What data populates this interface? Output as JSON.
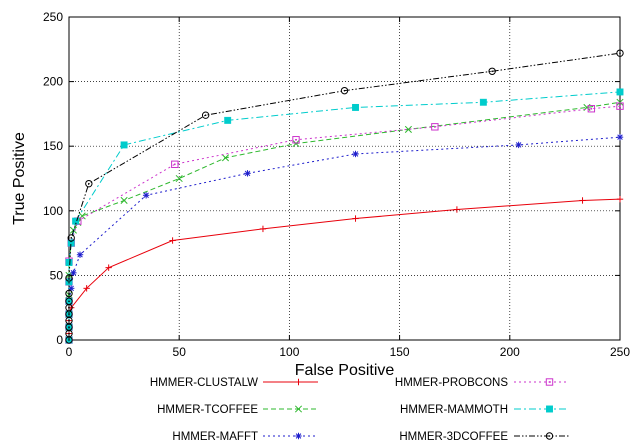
{
  "chart_data": {
    "type": "line",
    "xlabel": "False Positive",
    "ylabel": "True Positive",
    "xlim": [
      0,
      250
    ],
    "ylim": [
      0,
      250
    ],
    "xticks": [
      0,
      50,
      100,
      150,
      200,
      250
    ],
    "yticks": [
      0,
      50,
      100,
      150,
      200,
      250
    ],
    "grid": true,
    "legend_position": "bottom",
    "series": [
      {
        "name": "HMMER-CLUSTALW",
        "color": "#e8000b",
        "dash": "solid",
        "marker": "plus",
        "points": [
          [
            0,
            0
          ],
          [
            0,
            5
          ],
          [
            0,
            10
          ],
          [
            0,
            15
          ],
          [
            0,
            20
          ],
          [
            1,
            25
          ],
          [
            8,
            40
          ],
          [
            18,
            56
          ],
          [
            47,
            77
          ],
          [
            88,
            86
          ],
          [
            130,
            94
          ],
          [
            176,
            101
          ],
          [
            233,
            108
          ],
          [
            250,
            109
          ]
        ]
      },
      {
        "name": "HMMER-TCOFFEE",
        "color": "#2eb82e",
        "dash": "dash",
        "marker": "x",
        "points": [
          [
            0,
            0
          ],
          [
            0,
            10
          ],
          [
            0,
            20
          ],
          [
            0,
            35
          ],
          [
            0,
            50
          ],
          [
            0,
            60
          ],
          [
            1,
            75
          ],
          [
            2,
            85
          ],
          [
            4,
            91
          ],
          [
            6,
            96
          ],
          [
            25,
            108
          ],
          [
            50,
            125
          ],
          [
            71,
            141
          ],
          [
            103,
            152
          ],
          [
            154,
            163
          ],
          [
            235,
            180
          ],
          [
            250,
            184
          ]
        ]
      },
      {
        "name": "HMMER-MAFFT",
        "color": "#1d1dcc",
        "dash": "dot",
        "marker": "star",
        "points": [
          [
            0,
            0
          ],
          [
            0,
            10
          ],
          [
            0,
            20
          ],
          [
            0,
            30
          ],
          [
            1,
            40
          ],
          [
            2,
            52
          ],
          [
            5,
            66
          ],
          [
            35,
            112
          ],
          [
            81,
            129
          ],
          [
            130,
            144
          ],
          [
            204,
            151
          ],
          [
            250,
            157
          ]
        ]
      },
      {
        "name": "HMMER-PROBCONS",
        "color": "#cc33cc",
        "dash": "dot",
        "marker": "square-open",
        "points": [
          [
            0,
            0
          ],
          [
            0,
            10
          ],
          [
            0,
            20
          ],
          [
            0,
            30
          ],
          [
            0,
            45
          ],
          [
            0,
            61
          ],
          [
            1,
            75
          ],
          [
            4,
            92
          ],
          [
            48,
            136
          ],
          [
            103,
            155
          ],
          [
            166,
            165
          ],
          [
            237,
            179
          ],
          [
            250,
            181
          ]
        ]
      },
      {
        "name": "HMMER-MAMMOTH",
        "color": "#00cccc",
        "dash": "dashdot",
        "marker": "square-filled",
        "points": [
          [
            0,
            0
          ],
          [
            0,
            10
          ],
          [
            0,
            20
          ],
          [
            0,
            30
          ],
          [
            0,
            45
          ],
          [
            0,
            60
          ],
          [
            1,
            75
          ],
          [
            3,
            92
          ],
          [
            25,
            151
          ],
          [
            72,
            170
          ],
          [
            130,
            180
          ],
          [
            188,
            184
          ],
          [
            250,
            192
          ]
        ]
      },
      {
        "name": "HMMER-3DCOFFEE",
        "color": "#000000",
        "dash": "dashdotdot",
        "marker": "circle-open",
        "points": [
          [
            0,
            0
          ],
          [
            0,
            5
          ],
          [
            0,
            10
          ],
          [
            0,
            15
          ],
          [
            0,
            20
          ],
          [
            0,
            25
          ],
          [
            0,
            30
          ],
          [
            0,
            36
          ],
          [
            0,
            48
          ],
          [
            1,
            79
          ],
          [
            9,
            121
          ],
          [
            62,
            174
          ],
          [
            125,
            193
          ],
          [
            192,
            208
          ],
          [
            250,
            222
          ]
        ]
      }
    ]
  }
}
